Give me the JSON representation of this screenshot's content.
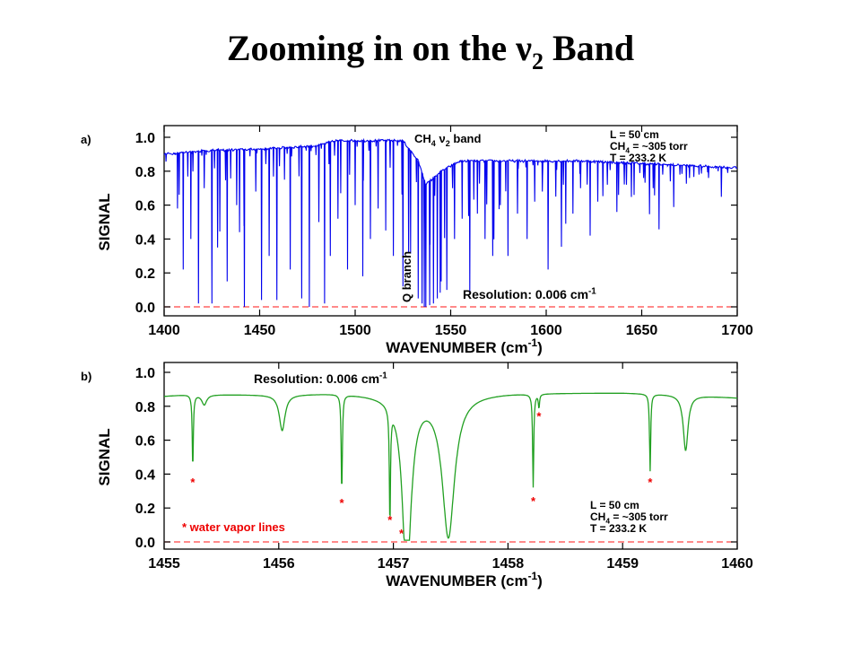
{
  "slide": {
    "title_main": "Zooming in on the ν",
    "title_sub": "2",
    "title_end": " Band"
  },
  "chart_data": [
    {
      "type": "line",
      "panel_label": "a)",
      "title": "",
      "xlabel": "WAVENUMBER (cm-1)",
      "ylabel": "SIGNAL",
      "xlim": [
        1400,
        1700
      ],
      "ylim": [
        0.0,
        1.0
      ],
      "xticks": [
        1400,
        1450,
        1500,
        1550,
        1600,
        1650,
        1700
      ],
      "yticks": [
        0.0,
        0.2,
        0.4,
        0.6,
        0.8,
        1.0
      ],
      "grid": false,
      "line_color": "#0000ee",
      "baseline_color": "#ff4444",
      "band_label": "CH4 ν2 band",
      "q_branch_label": "Q branch",
      "resolution_label": "Resolution: 0.006 cm-1",
      "conditions": [
        "L = 50 cm",
        "CH4 = ~305 torr",
        "T = 233.2 K"
      ],
      "series": [
        {
          "continuum": [
            [
              1400,
              0.9
            ],
            [
              1420,
              0.92
            ],
            [
              1450,
              0.93
            ],
            [
              1480,
              0.95
            ],
            [
              1490,
              0.98
            ],
            [
              1525,
              0.98
            ],
            [
              1533,
              0.86
            ],
            [
              1537,
              0.72
            ],
            [
              1545,
              0.8
            ],
            [
              1555,
              0.86
            ],
            [
              1580,
              0.86
            ],
            [
              1620,
              0.86
            ],
            [
              1660,
              0.84
            ],
            [
              1700,
              0.82
            ]
          ],
          "lines": [
            [
              1407,
              0.58
            ],
            [
              1410,
              0.22
            ],
            [
              1414,
              0.4
            ],
            [
              1418,
              0.02
            ],
            [
              1421,
              0.7
            ],
            [
              1425,
              0.02
            ],
            [
              1428,
              0.35
            ],
            [
              1433,
              0.15
            ],
            [
              1438,
              0.6
            ],
            [
              1442,
              0.0
            ],
            [
              1448,
              0.68
            ],
            [
              1451,
              0.04
            ],
            [
              1455,
              0.3
            ],
            [
              1459,
              0.04
            ],
            [
              1463,
              0.75
            ],
            [
              1466,
              0.22
            ],
            [
              1472,
              0.05
            ],
            [
              1476,
              0.0
            ],
            [
              1481,
              0.5
            ],
            [
              1484,
              0.02
            ],
            [
              1487,
              0.3
            ],
            [
              1491,
              0.52
            ],
            [
              1496,
              0.22
            ],
            [
              1500,
              0.6
            ],
            [
              1504,
              0.18
            ],
            [
              1508,
              0.4
            ],
            [
              1512,
              0.58
            ],
            [
              1516,
              0.45
            ],
            [
              1520,
              0.3
            ],
            [
              1525,
              0.12
            ],
            [
              1528,
              0.32
            ],
            [
              1533,
              0.05
            ],
            [
              1535,
              0.02
            ],
            [
              1537,
              0.0
            ],
            [
              1539,
              0.01
            ],
            [
              1541,
              0.02
            ],
            [
              1543,
              0.05
            ],
            [
              1545,
              0.15
            ],
            [
              1548,
              0.1
            ],
            [
              1552,
              0.4
            ],
            [
              1556,
              0.52
            ],
            [
              1560,
              0.08
            ],
            [
              1564,
              0.55
            ],
            [
              1568,
              0.4
            ],
            [
              1572,
              0.3
            ],
            [
              1576,
              0.6
            ],
            [
              1580,
              0.3
            ],
            [
              1585,
              0.55
            ],
            [
              1590,
              0.4
            ],
            [
              1594,
              0.62
            ],
            [
              1598,
              0.68
            ],
            [
              1601,
              0.22
            ],
            [
              1605,
              0.65
            ],
            [
              1609,
              0.72
            ],
            [
              1614,
              0.55
            ],
            [
              1618,
              0.7
            ],
            [
              1623,
              0.42
            ],
            [
              1627,
              0.62
            ],
            [
              1632,
              0.72
            ],
            [
              1637,
              0.56
            ],
            [
              1642,
              0.72
            ],
            [
              1646,
              0.66
            ],
            [
              1651,
              0.76
            ],
            [
              1656,
              0.7
            ],
            [
              1661,
              0.78
            ],
            [
              1665,
              0.74
            ],
            [
              1670,
              0.78
            ],
            [
              1675,
              0.76
            ],
            [
              1680,
              0.78
            ],
            [
              1685,
              0.76
            ],
            [
              1690,
              0.8
            ],
            [
              1695,
              0.79
            ]
          ]
        }
      ]
    },
    {
      "type": "line",
      "panel_label": "b)",
      "title": "",
      "xlabel": "WAVENUMBER (cm-1)",
      "ylabel": "SIGNAL",
      "xlim": [
        1455,
        1460
      ],
      "ylim": [
        0.0,
        1.0
      ],
      "xticks": [
        1455,
        1456,
        1457,
        1458,
        1459,
        1460
      ],
      "yticks": [
        0.0,
        0.2,
        0.4,
        0.6,
        0.8,
        1.0
      ],
      "grid": false,
      "line_color": "#22a022",
      "baseline_color": "#ff4444",
      "marker_color": "#ee0000",
      "resolution_label": "Resolution: 0.006 cm-1",
      "legend_label": "* water vapor lines",
      "conditions": [
        "L = 50 cm",
        "CH4 = ~305 torr",
        "T = 233.2 K"
      ],
      "series": [
        {
          "continuum": [
            [
              1455.0,
              0.86
            ],
            [
              1455.2,
              0.87
            ],
            [
              1456.0,
              0.87
            ],
            [
              1456.5,
              0.88
            ],
            [
              1457.0,
              0.87
            ],
            [
              1458.0,
              0.88
            ],
            [
              1459.0,
              0.88
            ],
            [
              1459.5,
              0.87
            ],
            [
              1460.0,
              0.85
            ]
          ],
          "lines": [
            {
              "x": 1455.25,
              "y": 0.44,
              "w": 0.012
            },
            {
              "x": 1455.35,
              "y": 0.81,
              "w": 0.05
            },
            {
              "x": 1456.03,
              "y": 0.66,
              "w": 0.06
            },
            {
              "x": 1456.55,
              "y": 0.3,
              "w": 0.012
            },
            {
              "x": 1456.97,
              "y": 0.2,
              "w": 0.012
            },
            {
              "x": 1457.12,
              "y": 0.13,
              "w": 0.012
            },
            {
              "x": 1457.1,
              "y": 0.72,
              "w": 0.06
            },
            {
              "x": 1457.12,
              "y": 0.02,
              "w": 0.1
            },
            {
              "x": 1457.48,
              "y": 0.04,
              "w": 0.13
            },
            {
              "x": 1458.22,
              "y": 0.33,
              "w": 0.012
            },
            {
              "x": 1458.27,
              "y": 0.8,
              "w": 0.012
            },
            {
              "x": 1459.24,
              "y": 0.42,
              "w": 0.012
            },
            {
              "x": 1459.55,
              "y": 0.54,
              "w": 0.05
            }
          ],
          "water_vapor_lines": [
            [
              1455.25,
              0.38
            ],
            [
              1456.55,
              0.26
            ],
            [
              1456.97,
              0.16
            ],
            [
              1457.07,
              0.08
            ],
            [
              1458.22,
              0.27
            ],
            [
              1458.27,
              0.77
            ],
            [
              1459.24,
              0.38
            ]
          ]
        }
      ]
    }
  ]
}
